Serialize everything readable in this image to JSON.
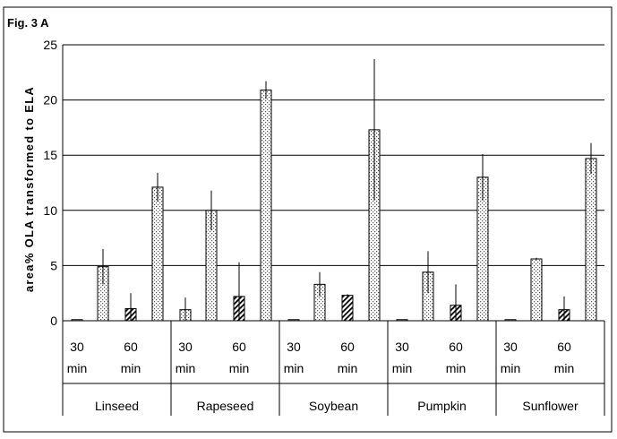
{
  "figure_label": "Fig. 3 A",
  "chart_data": {
    "type": "bar",
    "ylabel": "area% OLA transformed to ELA",
    "ylim": [
      0,
      25
    ],
    "yticks": [
      0,
      5,
      10,
      15,
      20,
      25
    ],
    "grid": true,
    "groups": [
      "Linseed",
      "Rapeseed",
      "Soybean",
      "Pumpkin",
      "Sunflower"
    ],
    "time_labels": [
      [
        "30",
        "min"
      ],
      [
        "60",
        "min"
      ]
    ],
    "bars": [
      {
        "group": "Linseed",
        "values": [
          0.1,
          4.9,
          1.1,
          12.1
        ],
        "errors": [
          0,
          1.6,
          1.4,
          1.3
        ]
      },
      {
        "group": "Rapeseed",
        "values": [
          1.0,
          10.0,
          2.2,
          20.9
        ],
        "errors": [
          1.1,
          1.8,
          3.1,
          0.8
        ]
      },
      {
        "group": "Soybean",
        "values": [
          0.1,
          3.3,
          2.3,
          17.3
        ],
        "errors": [
          0,
          1.1,
          0.1,
          6.4
        ]
      },
      {
        "group": "Pumpkin",
        "values": [
          0.1,
          4.4,
          1.4,
          13.0
        ],
        "errors": [
          0,
          1.9,
          1.9,
          2.1
        ]
      },
      {
        "group": "Sunflower",
        "values": [
          0.1,
          5.6,
          1.0,
          14.7
        ],
        "errors": [
          0,
          0.1,
          1.2,
          1.4
        ]
      }
    ]
  }
}
